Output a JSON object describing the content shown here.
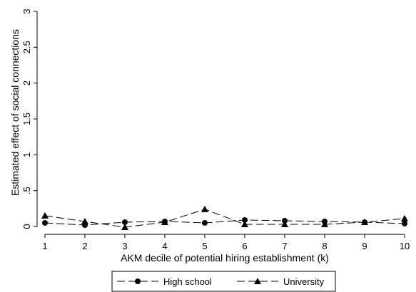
{
  "chart_data": {
    "type": "line",
    "title": "",
    "xlabel": "AKM decile of potential hiring establishment (k)",
    "ylabel": "Estimated effect of social connections",
    "x": [
      1,
      2,
      3,
      4,
      5,
      6,
      7,
      8,
      9,
      10
    ],
    "x_tick_labels": [
      "1",
      "2",
      "3",
      "4",
      "5",
      "6",
      "7",
      "8",
      "9",
      "10"
    ],
    "y_tick_labels": [
      "0",
      ".5",
      "1",
      "1.5",
      "2",
      "2.5",
      "3"
    ],
    "y_ticks": [
      0,
      0.5,
      1,
      1.5,
      2,
      2.5,
      3
    ],
    "xlim": [
      1,
      10
    ],
    "ylim": [
      0,
      3
    ],
    "grid": false,
    "legend_position": "bottom",
    "series": [
      {
        "name": "High school",
        "marker": "circle",
        "line_style": "dashed",
        "color": "#000000",
        "values": [
          0.05,
          0.02,
          0.06,
          0.07,
          0.05,
          0.09,
          0.08,
          0.07,
          0.06,
          0.04
        ]
      },
      {
        "name": "University",
        "marker": "triangle",
        "line_style": "dashed",
        "color": "#000000",
        "values": [
          0.15,
          0.07,
          -0.01,
          0.06,
          0.24,
          0.03,
          0.03,
          0.03,
          0.06,
          0.11
        ]
      }
    ]
  }
}
